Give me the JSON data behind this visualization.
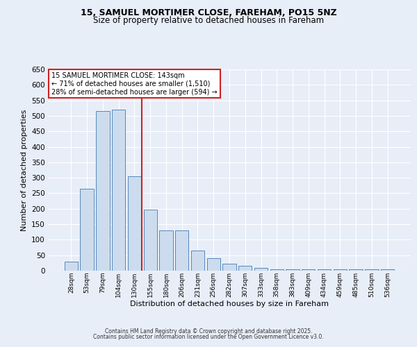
{
  "title1": "15, SAMUEL MORTIMER CLOSE, FAREHAM, PO15 5NZ",
  "title2": "Size of property relative to detached houses in Fareham",
  "xlabel": "Distribution of detached houses by size in Fareham",
  "ylabel": "Number of detached properties",
  "bar_labels": [
    "28sqm",
    "53sqm",
    "79sqm",
    "104sqm",
    "130sqm",
    "155sqm",
    "180sqm",
    "206sqm",
    "231sqm",
    "256sqm",
    "282sqm",
    "307sqm",
    "333sqm",
    "358sqm",
    "383sqm",
    "409sqm",
    "434sqm",
    "459sqm",
    "485sqm",
    "510sqm",
    "536sqm"
  ],
  "bar_values": [
    30,
    265,
    515,
    520,
    305,
    197,
    130,
    130,
    65,
    40,
    22,
    15,
    8,
    5,
    5,
    4,
    4,
    4,
    4,
    4,
    5
  ],
  "bar_color": "#ccdcee",
  "bar_edge_color": "#5588bb",
  "ylim": [
    0,
    650
  ],
  "yticks": [
    0,
    50,
    100,
    150,
    200,
    250,
    300,
    350,
    400,
    450,
    500,
    550,
    600,
    650
  ],
  "vline_color": "#cc2222",
  "annotation_title": "15 SAMUEL MORTIMER CLOSE: 143sqm",
  "annotation_line1": "← 71% of detached houses are smaller (1,510)",
  "annotation_line2": "28% of semi-detached houses are larger (594) →",
  "footer1": "Contains HM Land Registry data © Crown copyright and database right 2025.",
  "footer2": "Contains public sector information licensed under the Open Government Licence v3.0.",
  "bg_color": "#e8eef8",
  "grid_color": "#ffffff",
  "font_family": "DejaVu Sans"
}
